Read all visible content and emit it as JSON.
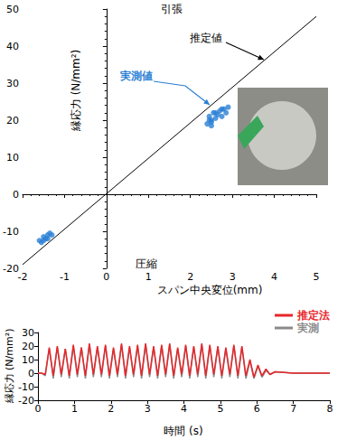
{
  "chart_data": [
    {
      "type": "scatter",
      "x_label": "スパン中央変位(mm)",
      "y_label": "縁応力 (N/mm²)",
      "annotations": [
        "引張",
        "圧縮"
      ],
      "xlim": [
        -2,
        5
      ],
      "xticks": [
        -2,
        -1,
        0,
        1,
        2,
        3,
        4,
        5
      ],
      "ylim": [
        -20,
        50
      ],
      "yticks": [
        -20,
        -10,
        0,
        10,
        20,
        30,
        40,
        50
      ],
      "grid": false,
      "series": [
        {
          "name": "推定値",
          "type": "line",
          "color": "#000000",
          "line_style": "solid",
          "x": [
            -2,
            5
          ],
          "values": [
            -19,
            48
          ]
        },
        {
          "name": "実測値",
          "type": "scatter",
          "color": "#2a7fd4",
          "marker": "circle",
          "x": [
            2.4,
            2.45,
            2.5,
            2.5,
            2.55,
            2.6,
            2.65,
            2.7,
            2.75,
            2.8,
            2.85,
            2.9,
            2.5,
            2.45,
            2.6,
            2.75,
            -1.6,
            -1.55,
            -1.5,
            -1.45,
            -1.4,
            -1.35,
            -1.5,
            -1.4,
            -1.3
          ],
          "values": [
            19,
            21,
            20,
            18.5,
            22,
            20.5,
            21.5,
            22.5,
            21,
            23,
            22,
            23.5,
            19.5,
            20,
            22,
            23,
            -12.5,
            -13,
            -11.5,
            -12,
            -11,
            -10.5,
            -12.5,
            -12,
            -11
          ]
        }
      ]
    },
    {
      "type": "line",
      "x_label": "時間 (s)",
      "y_label": "縁応力 (N/mm²)",
      "xlim": [
        0,
        8
      ],
      "xticks": [
        0,
        1,
        2,
        3,
        4,
        5,
        6,
        7,
        8
      ],
      "ylim": [
        -20,
        30
      ],
      "yticks": [
        -20,
        -10,
        0,
        10,
        20,
        30
      ],
      "grid": false,
      "legend": "upper right",
      "x": [
        0,
        0.1,
        0.2,
        0.31,
        0.42,
        0.53,
        0.64,
        0.75,
        0.86,
        0.97,
        1.08,
        1.19,
        1.3,
        1.41,
        1.52,
        1.63,
        1.74,
        1.85,
        1.96,
        2.07,
        2.18,
        2.29,
        2.4,
        2.51,
        2.62,
        2.73,
        2.84,
        2.95,
        3.06,
        3.17,
        3.28,
        3.39,
        3.5,
        3.61,
        3.72,
        3.83,
        3.94,
        4.05,
        4.16,
        4.27,
        4.38,
        4.49,
        4.6,
        4.71,
        4.82,
        4.93,
        5.04,
        5.15,
        5.26,
        5.37,
        5.48,
        5.59,
        5.7,
        5.81,
        5.92,
        6.03,
        6.14,
        6.25,
        6.36,
        6.5,
        7,
        8
      ],
      "series": [
        {
          "name": "推定法",
          "color": "#e8262a",
          "values": [
            0,
            0,
            -1,
            19,
            -2,
            20,
            -1,
            18,
            -2,
            21,
            -1,
            19,
            -2,
            22,
            -1,
            20,
            -1,
            21,
            -2,
            19,
            -1,
            22,
            -2,
            20,
            -1,
            21,
            -2,
            22,
            -1,
            20,
            -2,
            21,
            -1,
            22,
            -2,
            19,
            -1,
            21,
            -2,
            20,
            -1,
            22,
            -2,
            21,
            -1,
            20,
            -2,
            19,
            -1,
            21,
            -2,
            20,
            -2,
            10,
            -3,
            6,
            -2,
            3,
            -1,
            1,
            0,
            0
          ]
        },
        {
          "name": "実測",
          "color": "#8a8a8a",
          "values": [
            0,
            0,
            -2,
            18,
            -4,
            19,
            -3,
            18,
            -4,
            20,
            -3,
            19,
            -4,
            21,
            -3,
            19,
            -3,
            20,
            -4,
            18,
            -3,
            21,
            -4,
            19,
            -3,
            20,
            -4,
            21,
            -3,
            19,
            -4,
            20,
            -3,
            21,
            -4,
            18,
            -3,
            20,
            -4,
            19,
            -3,
            21,
            -4,
            20,
            -3,
            19,
            -4,
            18,
            -3,
            20,
            -4,
            19,
            -4,
            9,
            -4,
            5,
            -3,
            2,
            -1,
            1,
            0,
            0
          ]
        }
      ]
    }
  ]
}
